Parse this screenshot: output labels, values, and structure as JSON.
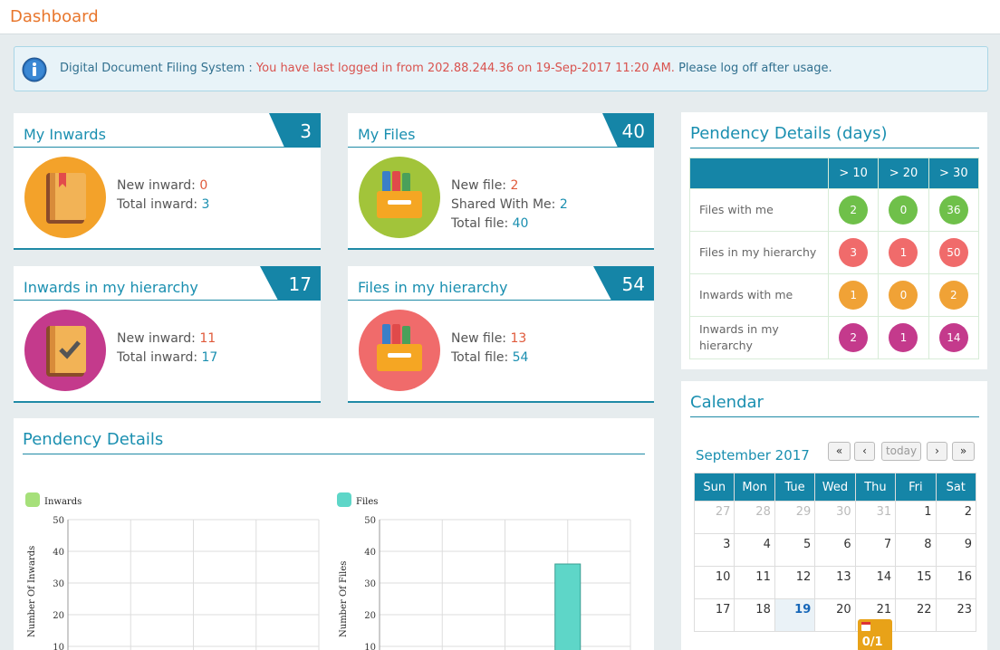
{
  "page": {
    "title": "Dashboard"
  },
  "alert": {
    "prefix": "Digital Document Filing System :",
    "login_info": "You have last logged in from 202.88.244.36 on 19-Sep-2017 11:20 AM.",
    "suffix": "Please log off after usage."
  },
  "stats": {
    "my_inwards": {
      "title": "My Inwards",
      "count": "3",
      "line1_label": "New inward:",
      "line1_value": "0",
      "line2_label": "Total inward:",
      "line2_value": "3"
    },
    "my_files": {
      "title": "My Files",
      "count": "40",
      "line1_label": "New file:",
      "line1_value": "2",
      "line2_label": "Shared With Me:",
      "line2_value": "2",
      "line3_label": "Total file:",
      "line3_value": "40"
    },
    "inwards_hierarchy": {
      "title": "Inwards in my hierarchy",
      "count": "17",
      "line1_label": "New inward:",
      "line1_value": "11",
      "line2_label": "Total inward:",
      "line2_value": "17"
    },
    "files_hierarchy": {
      "title": "Files in my hierarchy",
      "count": "54",
      "line1_label": "New file:",
      "line1_value": "13",
      "line2_label": "Total file:",
      "line2_value": "54"
    }
  },
  "pendency_days": {
    "title": "Pendency Details (days)",
    "headers": [
      "",
      "> 10",
      "> 20",
      "> 30"
    ],
    "rows": [
      {
        "label": "Files with me",
        "values": [
          "2",
          "0",
          "36"
        ],
        "color": "#6fc04a"
      },
      {
        "label": "Files in my hierarchy",
        "values": [
          "3",
          "1",
          "50"
        ],
        "color": "#f06b6b"
      },
      {
        "label": "Inwards with me",
        "values": [
          "1",
          "0",
          "2"
        ],
        "color": "#f0a236"
      },
      {
        "label": "Inwards in my hierarchy",
        "values": [
          "2",
          "1",
          "14"
        ],
        "color": "#c43a8c"
      }
    ]
  },
  "calendar": {
    "title": "Calendar",
    "month": "September 2017",
    "buttons": {
      "prev_year": "«",
      "prev": "‹",
      "today": "today",
      "next": "›",
      "next_year": "»"
    },
    "weekdays": [
      "Sun",
      "Mon",
      "Tue",
      "Wed",
      "Thu",
      "Fri",
      "Sat"
    ],
    "weeks": [
      [
        "27",
        "28",
        "29",
        "30",
        "31",
        "1",
        "2"
      ],
      [
        "3",
        "4",
        "5",
        "6",
        "7",
        "8",
        "9"
      ],
      [
        "10",
        "11",
        "12",
        "13",
        "14",
        "15",
        "16"
      ],
      [
        "17",
        "18",
        "19",
        "20",
        "21",
        "22",
        "23"
      ]
    ],
    "event_label": "0/1"
  },
  "pendency_chart": {
    "title": "Pendency Details"
  },
  "chart_data": [
    {
      "type": "bar",
      "series": [
        {
          "name": "Inwards",
          "values": []
        }
      ],
      "ylabel": "Number Of Inwards",
      "yticks": [
        "50",
        "40",
        "30",
        "20",
        "10"
      ],
      "ylim": [
        0,
        50
      ],
      "color": "#a6e07a"
    },
    {
      "type": "bar",
      "series": [
        {
          "name": "Files",
          "values": [
            0,
            0,
            36
          ]
        }
      ],
      "ylabel": "Number Of Files",
      "yticks": [
        "50",
        "40",
        "30",
        "20",
        "10"
      ],
      "ylim": [
        0,
        50
      ],
      "color": "#5ed6c8"
    }
  ]
}
